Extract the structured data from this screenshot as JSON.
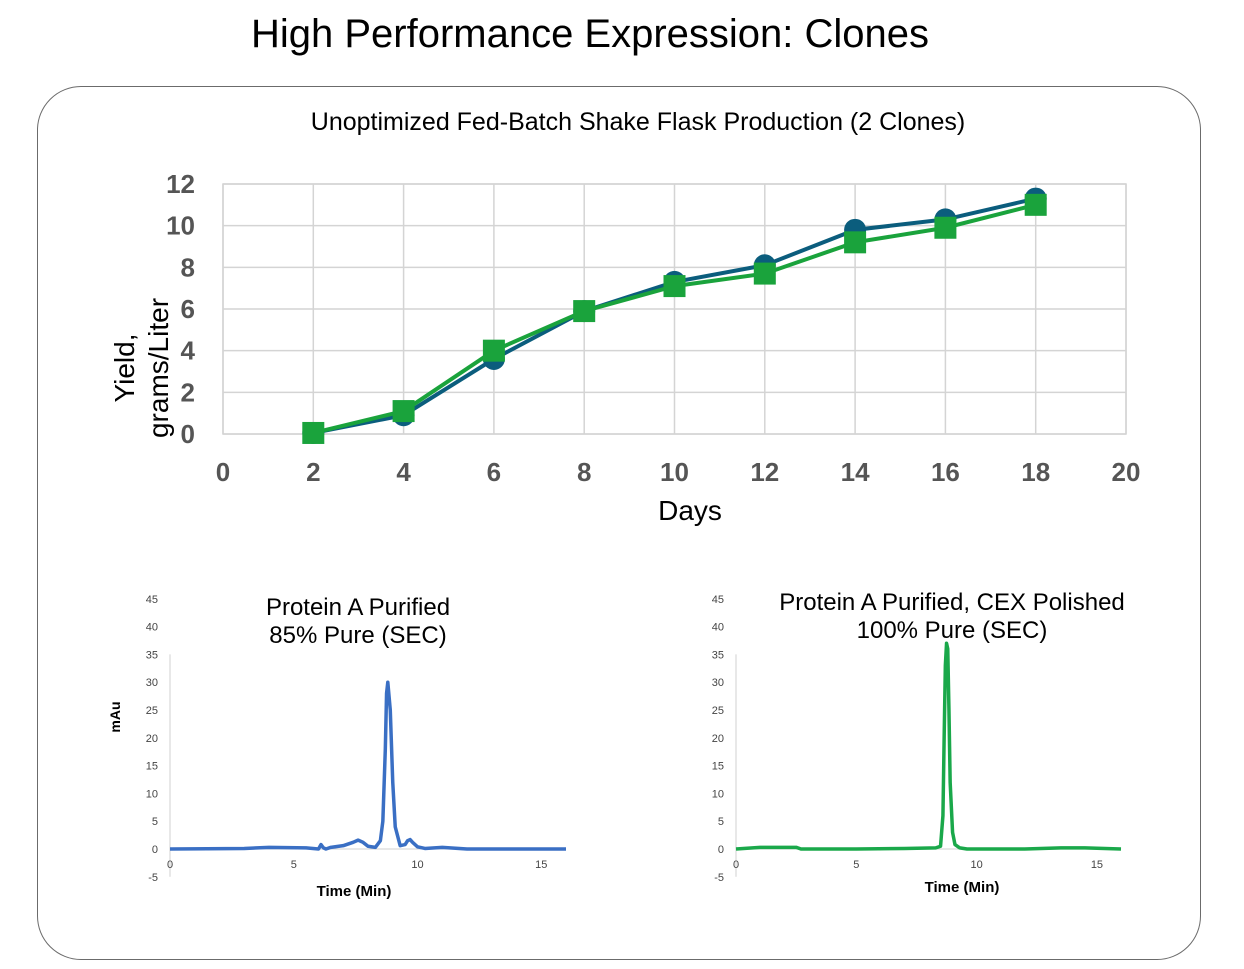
{
  "slide": {
    "title": "High Performance Expression: Clones"
  },
  "chart_data": [
    {
      "type": "line",
      "title": "Unoptimized Fed-Batch Shake Flask Production (2 Clones)",
      "xlabel": "Days",
      "ylabel": "Yield, grams/Liter",
      "xlim": [
        0,
        20
      ],
      "ylim": [
        0,
        12
      ],
      "xticks": [
        "0",
        "2",
        "4",
        "6",
        "8",
        "10",
        "12",
        "14",
        "16",
        "18",
        "20"
      ],
      "yticks": [
        "0",
        "2",
        "4",
        "6",
        "8",
        "10",
        "12"
      ],
      "grid": true,
      "x": [
        2,
        4,
        6,
        8,
        10,
        12,
        14,
        16,
        18
      ],
      "series": [
        {
          "marker": "circle",
          "color": "#0b5d7d",
          "values": [
            0.05,
            0.9,
            3.6,
            5.9,
            7.3,
            8.1,
            9.8,
            10.3,
            11.3
          ]
        },
        {
          "marker": "square",
          "color": "#1aa33c",
          "values": [
            0.05,
            1.1,
            4.0,
            5.9,
            7.1,
            7.7,
            9.2,
            9.9,
            11.0
          ]
        }
      ]
    },
    {
      "type": "line",
      "title": [
        "Protein A Purified",
        "85% Pure (SEC)"
      ],
      "xlabel": "Time (Min)",
      "ylabel": "mAu",
      "xlim": [
        0,
        16
      ],
      "ylim": [
        -5,
        45
      ],
      "xticks": [
        "0",
        "5",
        "10",
        "15"
      ],
      "yticks": [
        "-5",
        "0",
        "5",
        "10",
        "15",
        "20",
        "25",
        "30",
        "35",
        "40",
        "45"
      ],
      "color": "#3a6fc4",
      "x": [
        0,
        3,
        4,
        5.5,
        6,
        6.1,
        6.2,
        6.3,
        6.5,
        7,
        7.4,
        7.6,
        7.8,
        8.0,
        8.3,
        8.5,
        8.6,
        8.7,
        8.75,
        8.8,
        8.9,
        9.0,
        9.1,
        9.3,
        9.5,
        9.6,
        9.7,
        9.8,
        10.0,
        10.3,
        11,
        12,
        16
      ],
      "values": [
        0,
        0.1,
        0.3,
        0.2,
        0,
        0.8,
        0.2,
        0,
        0.3,
        0.6,
        1.2,
        1.6,
        1.2,
        0.5,
        0.3,
        1.5,
        5,
        18,
        28,
        30,
        25,
        12,
        4,
        0.6,
        0.8,
        1.5,
        1.7,
        1.2,
        0.4,
        0.1,
        0.3,
        0,
        0
      ]
    },
    {
      "type": "line",
      "title": [
        "Protein A Purified, CEX Polished",
        "100% Pure (SEC)"
      ],
      "xlabel": "Time (Min)",
      "ylabel": "",
      "xlim": [
        0,
        16
      ],
      "ylim": [
        -5,
        45
      ],
      "xticks": [
        "0",
        "5",
        "10",
        "15"
      ],
      "yticks": [
        "-5",
        "0",
        "5",
        "10",
        "15",
        "20",
        "25",
        "30",
        "35",
        "40",
        "45"
      ],
      "color": "#1aa84a",
      "x": [
        0,
        1.0,
        2.5,
        2.7,
        5,
        7,
        8.3,
        8.5,
        8.6,
        8.65,
        8.7,
        8.75,
        8.8,
        8.85,
        8.9,
        9.0,
        9.1,
        9.3,
        9.6,
        12,
        13.5,
        14.5,
        16
      ],
      "values": [
        0,
        0.3,
        0.3,
        0,
        0,
        0.1,
        0.2,
        0.5,
        6,
        20,
        33,
        37,
        36,
        25,
        12,
        3,
        0.8,
        0.2,
        0,
        0,
        0.2,
        0.2,
        0
      ]
    }
  ]
}
